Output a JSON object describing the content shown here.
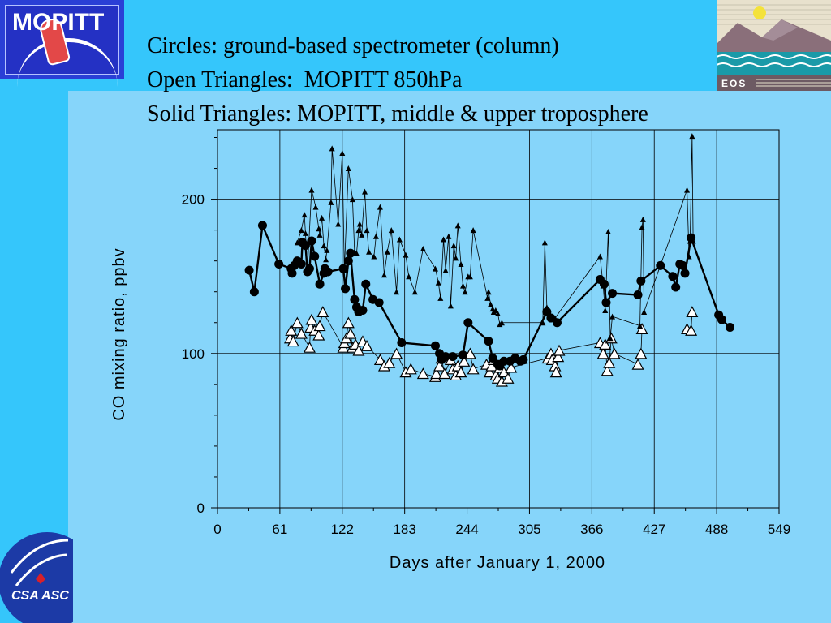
{
  "header": {
    "mopitt_logo_text": "MOPITT",
    "eos_logo_text": "EOS",
    "csa_logo_text": "CSA ASC",
    "title_lines": [
      "Circles: ground-based spectrometer (column)",
      "Open Triangles:  MOPITT 850hPa",
      "Solid Triangles: MOPITT, middle & upper troposphere"
    ]
  },
  "colors": {
    "background": "#35c6fb",
    "panel": "#86d5fa",
    "line": "#000000",
    "open_marker_fill": "#ffffff"
  },
  "chart_data": {
    "type": "scatter",
    "title": "",
    "xlabel": "Days after January 1, 2000",
    "ylabel": "CO mixing ratio, ppbv",
    "xlim": [
      0,
      549
    ],
    "ylim": [
      0,
      245
    ],
    "xticks": [
      0,
      61,
      122,
      183,
      244,
      305,
      366,
      427,
      488,
      549
    ],
    "yticks": [
      0,
      100,
      200
    ],
    "grid": true,
    "series": [
      {
        "name": "Circles: ground-based spectrometer (column)",
        "marker": "filled-circle",
        "connected": true,
        "x": [
          31,
          36,
          44,
          60,
          72,
          73,
          75,
          78,
          82,
          83,
          86,
          88,
          90,
          92,
          95,
          100,
          104,
          105,
          108,
          123,
          125,
          128,
          130,
          134,
          136,
          138,
          142,
          145,
          152,
          158,
          180,
          213,
          217,
          219,
          223,
          230,
          240,
          245,
          265,
          269,
          274,
          276,
          280,
          286,
          291,
          296,
          299,
          322,
          326,
          332,
          374,
          378,
          380,
          386,
          411,
          414,
          433,
          445,
          448,
          452,
          455,
          457,
          463,
          490,
          493,
          501
        ],
        "y": [
          154,
          140,
          183,
          158,
          155,
          152,
          157,
          160,
          158,
          172,
          170,
          153,
          155,
          173,
          163,
          145,
          152,
          155,
          153,
          155,
          142,
          160,
          165,
          135,
          130,
          127,
          128,
          145,
          135,
          133,
          107,
          105,
          100,
          96,
          98,
          98,
          99,
          120,
          108,
          97,
          93,
          92,
          95,
          95,
          97,
          95,
          96,
          127,
          123,
          120,
          148,
          145,
          133,
          139,
          138,
          147,
          157,
          150,
          143,
          158,
          157,
          152,
          175,
          125,
          122,
          117
        ]
      },
      {
        "name": "Open Triangles:  MOPITT 850hPa",
        "marker": "open-triangle",
        "connected": true,
        "x": [
          71,
          72,
          74,
          78,
          82,
          90,
          91,
          92,
          95,
          99,
          100,
          103,
          123,
          124,
          126,
          128,
          130,
          132,
          135,
          138,
          142,
          146,
          159,
          163,
          168,
          175,
          184,
          189,
          201,
          213,
          214,
          217,
          219,
          222,
          228,
          230,
          233,
          235,
          238,
          241,
          247,
          250,
          263,
          266,
          268,
          270,
          272,
          274,
          276,
          278,
          280,
          284,
          287,
          323,
          326,
          327,
          330,
          331,
          333,
          334,
          374,
          377,
          379,
          381,
          383,
          385,
          388,
          411,
          414,
          415,
          459,
          463,
          464
        ],
        "y": [
          110,
          115,
          108,
          120,
          113,
          104,
          117,
          122,
          115,
          112,
          118,
          127,
          104,
          107,
          110,
          120,
          113,
          104,
          106,
          102,
          108,
          105,
          96,
          92,
          94,
          100,
          88,
          90,
          87,
          85,
          87,
          92,
          97,
          87,
          96,
          90,
          86,
          92,
          88,
          95,
          100,
          90,
          93,
          88,
          92,
          96,
          86,
          84,
          91,
          82,
          88,
          84,
          91,
          97,
          100,
          96,
          92,
          88,
          98,
          102,
          107,
          100,
          106,
          89,
          94,
          110,
          100,
          93,
          100,
          116,
          116,
          115,
          127
        ]
      },
      {
        "name": "Solid Triangles: MOPITT, middle & upper troposphere",
        "marker": "filled-triangle",
        "connected": true,
        "x": [
          78,
          82,
          85,
          86,
          88,
          92,
          96,
          99,
          100,
          102,
          104,
          106,
          107,
          111,
          112,
          118,
          122,
          124,
          128,
          132,
          134,
          136,
          138,
          139,
          141,
          144,
          146,
          148,
          153,
          155,
          159,
          163,
          166,
          170,
          175,
          178,
          184,
          187,
          193,
          201,
          213,
          216,
          218,
          221,
          223,
          226,
          228,
          231,
          233,
          235,
          238,
          240,
          242,
          245,
          247,
          250,
          264,
          265,
          267,
          269,
          270,
          272,
          274,
          276,
          278,
          318,
          320,
          322,
          323,
          325,
          330,
          374,
          377,
          379,
          382,
          384,
          386,
          413,
          415,
          416,
          417,
          459,
          461,
          462,
          464,
          465
        ],
        "y": [
          172,
          180,
          190,
          178,
          155,
          206,
          195,
          181,
          177,
          188,
          170,
          161,
          167,
          198,
          233,
          184,
          230,
          154,
          220,
          200,
          166,
          165,
          180,
          184,
          177,
          205,
          180,
          166,
          163,
          176,
          195,
          151,
          166,
          180,
          140,
          174,
          164,
          150,
          140,
          168,
          155,
          146,
          136,
          174,
          154,
          176,
          131,
          170,
          162,
          183,
          158,
          144,
          140,
          150,
          150,
          180,
          136,
          140,
          132,
          129,
          127,
          128,
          126,
          119,
          120,
          120,
          172,
          130,
          128,
          125,
          123,
          163,
          144,
          128,
          179,
          110,
          124,
          118,
          182,
          187,
          127,
          206,
          163,
          173,
          241,
          173
        ]
      }
    ]
  }
}
